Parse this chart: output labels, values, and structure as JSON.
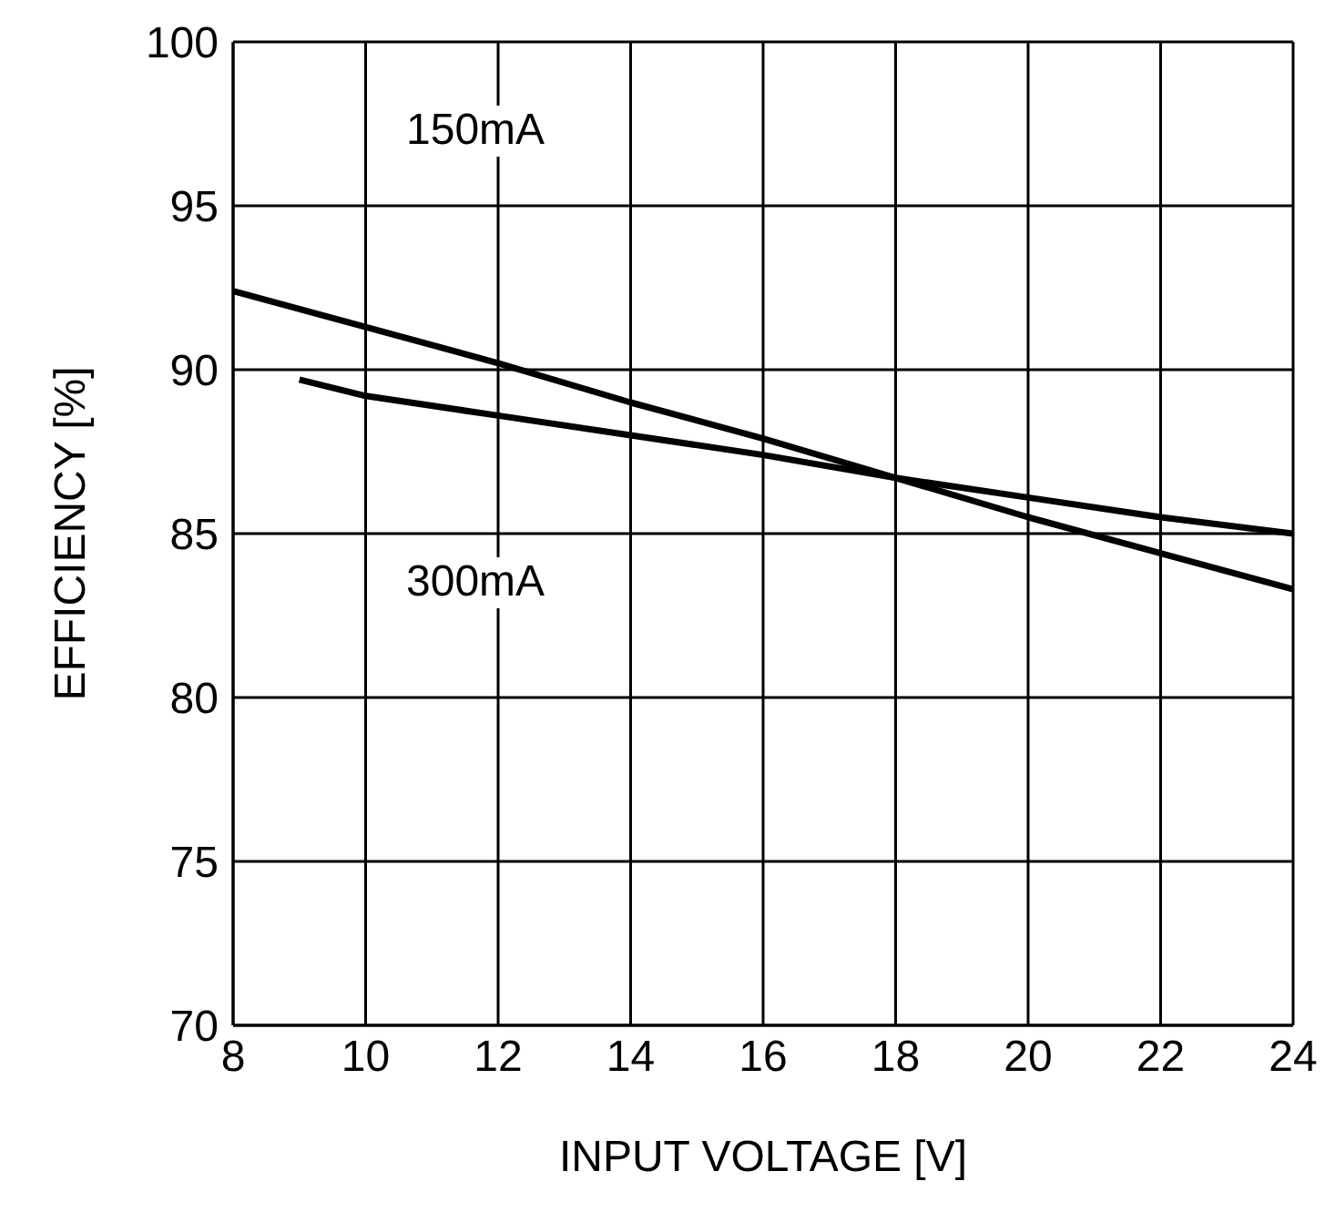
{
  "chart_data": {
    "type": "line",
    "xlabel": "INPUT VOLTAGE [V]",
    "ylabel": "EFFICIENCY [%]",
    "xlim": [
      8,
      24
    ],
    "xticks": [
      8,
      10,
      12,
      14,
      16,
      18,
      20,
      22,
      24
    ],
    "ylim": [
      70,
      100
    ],
    "yticks": [
      70,
      75,
      80,
      85,
      90,
      95,
      100
    ],
    "grid": true,
    "marker": "none",
    "line_style": "solid",
    "series": [
      {
        "color": "#000000",
        "x": [
          8,
          10,
          12,
          14,
          16,
          18,
          20,
          22,
          24
        ],
        "values": [
          92.4,
          91.3,
          90.2,
          89.0,
          87.9,
          86.7,
          85.5,
          84.4,
          83.3
        ]
      },
      {
        "color": "#000000",
        "x": [
          9,
          10,
          12,
          14,
          16,
          18,
          20,
          22,
          24
        ],
        "values": [
          89.7,
          89.2,
          88.6,
          88.0,
          87.4,
          86.7,
          86.1,
          85.5,
          85.0
        ]
      }
    ],
    "annotations": [
      "150mA",
      "300mA"
    ]
  }
}
